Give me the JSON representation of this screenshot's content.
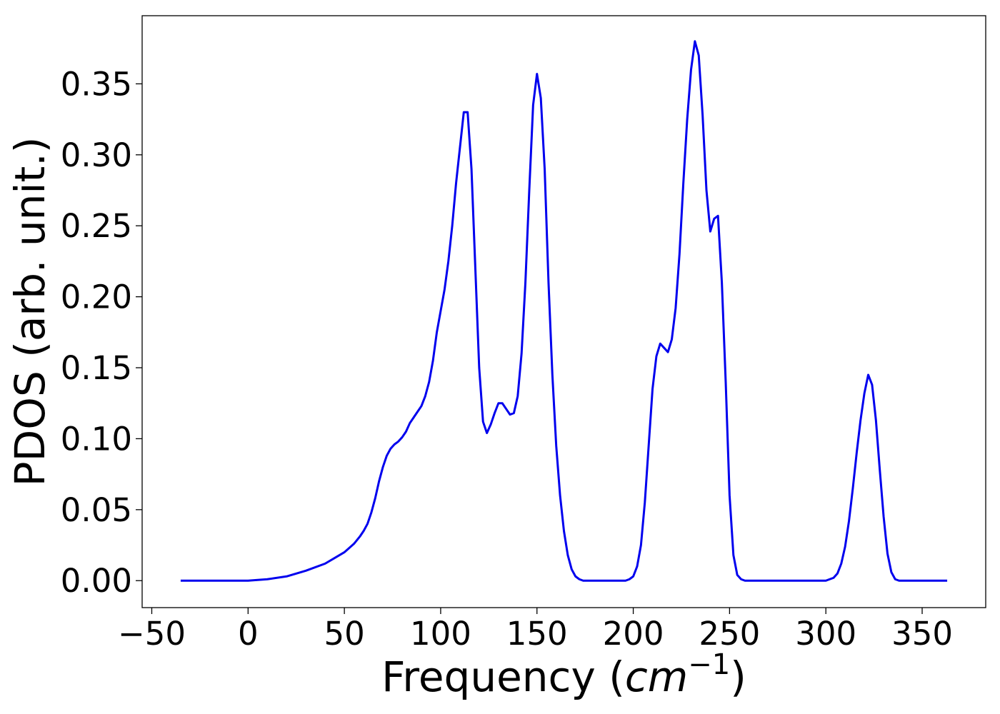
{
  "chart_data": {
    "type": "line",
    "title": "",
    "xlabel": "Frequency (cm⁻¹)",
    "xlabel_parts": {
      "main": "Frequency (",
      "unit": "cm",
      "exp": "−1",
      "close": ")"
    },
    "ylabel": "PDOS (arb. unit.)",
    "xlim": [
      -55,
      383
    ],
    "ylim": [
      -0.019,
      0.398
    ],
    "x_ticks": [
      -50,
      0,
      50,
      100,
      150,
      200,
      250,
      300,
      350
    ],
    "x_tick_labels": [
      "−50",
      "0",
      "50",
      "100",
      "150",
      "200",
      "250",
      "300",
      "350"
    ],
    "y_ticks": [
      0.0,
      0.05,
      0.1,
      0.15,
      0.2,
      0.25,
      0.3,
      0.35
    ],
    "y_tick_labels": [
      "0.00",
      "0.05",
      "0.10",
      "0.15",
      "0.20",
      "0.25",
      "0.30",
      "0.35"
    ],
    "grid": false,
    "legend": "none",
    "series": [
      {
        "color": "#0000ee",
        "x": [
          -35,
          -20,
          0,
          10,
          20,
          30,
          40,
          45,
          50,
          55,
          58,
          60,
          62,
          64,
          66,
          68,
          70,
          72,
          74,
          76,
          78,
          80,
          82,
          84,
          86,
          88,
          90,
          92,
          94,
          96,
          98,
          100,
          102,
          104,
          106,
          108,
          110,
          112,
          114,
          116,
          118,
          120,
          122,
          124,
          126,
          128,
          130,
          132,
          134,
          136,
          138,
          140,
          142,
          144,
          146,
          148,
          150,
          152,
          154,
          156,
          158,
          160,
          162,
          164,
          166,
          168,
          170,
          172,
          174,
          176,
          180,
          190,
          196,
          198,
          200,
          202,
          204,
          206,
          208,
          210,
          212,
          214,
          216,
          218,
          220,
          222,
          224,
          226,
          228,
          230,
          232,
          234,
          236,
          238,
          240,
          242,
          244,
          246,
          248,
          250,
          252,
          254,
          256,
          258,
          260,
          270,
          290,
          300,
          304,
          306,
          308,
          310,
          312,
          314,
          316,
          318,
          320,
          322,
          324,
          326,
          328,
          330,
          332,
          334,
          336,
          338,
          340,
          350,
          363
        ],
        "y": [
          0.0,
          0.0,
          0.0,
          0.001,
          0.003,
          0.007,
          0.012,
          0.016,
          0.02,
          0.026,
          0.031,
          0.035,
          0.04,
          0.048,
          0.058,
          0.07,
          0.08,
          0.088,
          0.093,
          0.096,
          0.098,
          0.101,
          0.105,
          0.111,
          0.115,
          0.119,
          0.123,
          0.13,
          0.14,
          0.155,
          0.175,
          0.19,
          0.205,
          0.225,
          0.25,
          0.28,
          0.305,
          0.33,
          0.33,
          0.29,
          0.22,
          0.15,
          0.112,
          0.104,
          0.11,
          0.118,
          0.125,
          0.125,
          0.121,
          0.117,
          0.118,
          0.13,
          0.16,
          0.21,
          0.275,
          0.335,
          0.357,
          0.34,
          0.29,
          0.21,
          0.145,
          0.095,
          0.06,
          0.035,
          0.018,
          0.008,
          0.003,
          0.001,
          0.0,
          0.0,
          0.0,
          0.0,
          0.0,
          0.001,
          0.003,
          0.01,
          0.025,
          0.055,
          0.095,
          0.135,
          0.158,
          0.167,
          0.164,
          0.161,
          0.17,
          0.192,
          0.23,
          0.28,
          0.325,
          0.36,
          0.38,
          0.37,
          0.328,
          0.275,
          0.246,
          0.255,
          0.257,
          0.21,
          0.14,
          0.06,
          0.018,
          0.004,
          0.001,
          0.0,
          0.0,
          0.0,
          0.0,
          0.0,
          0.002,
          0.005,
          0.012,
          0.024,
          0.042,
          0.065,
          0.09,
          0.113,
          0.132,
          0.145,
          0.138,
          0.113,
          0.078,
          0.045,
          0.019,
          0.006,
          0.001,
          0.0,
          0.0,
          0.0,
          0.0
        ]
      }
    ]
  }
}
